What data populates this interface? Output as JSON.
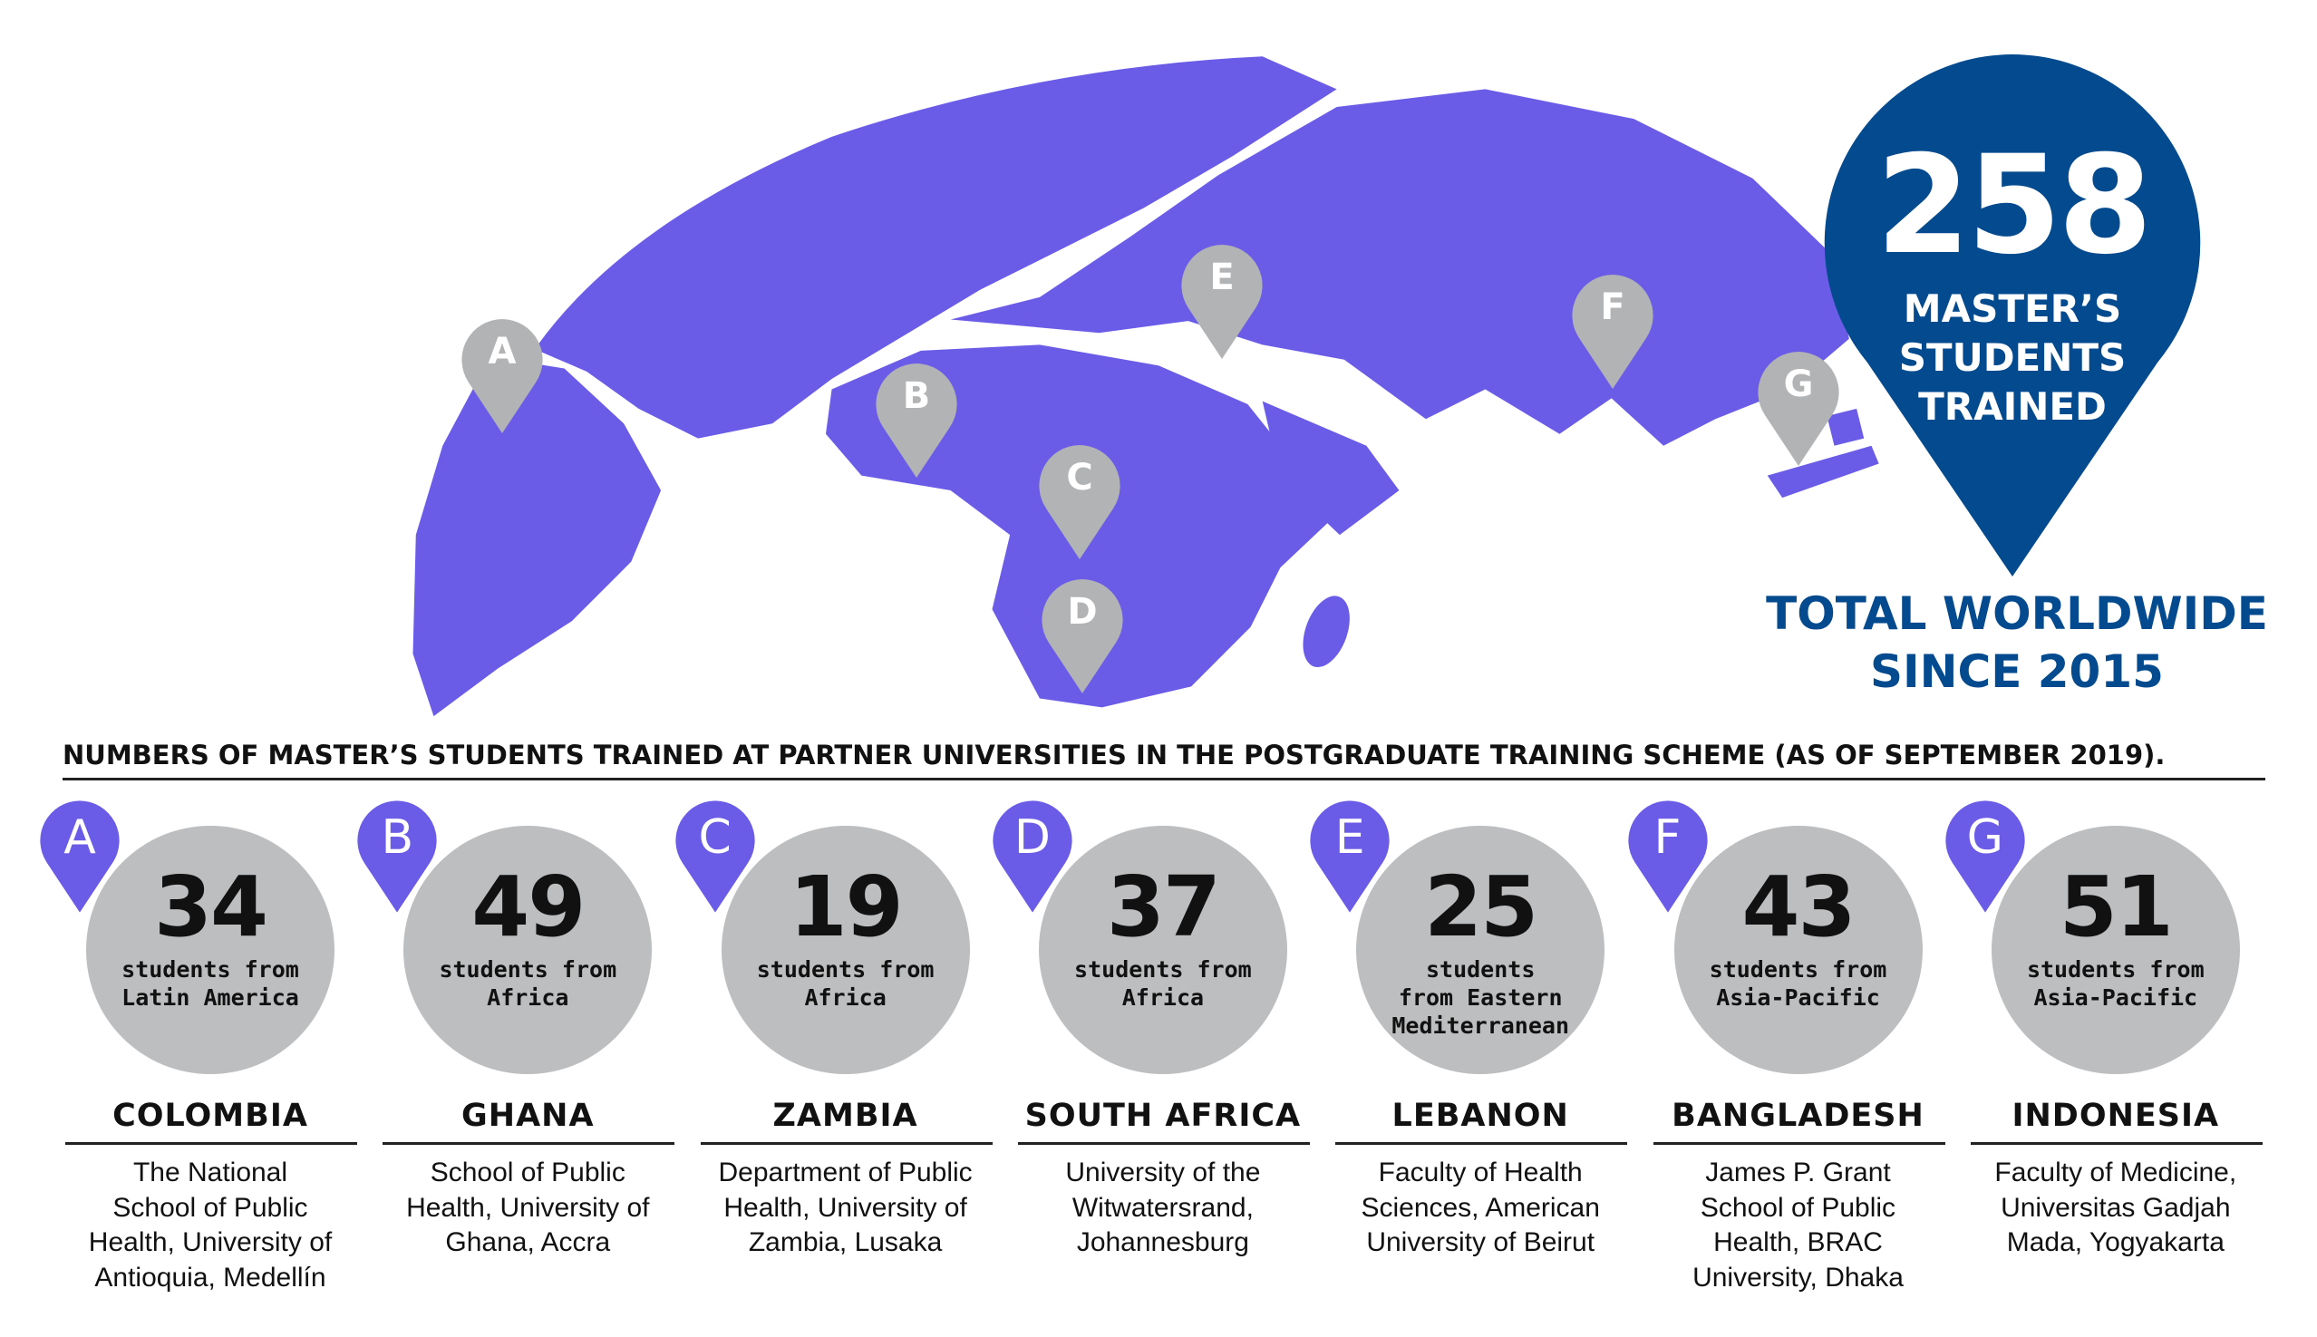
{
  "colors": {
    "map": "#6b5ce7",
    "pin_map": "#b1b3b5",
    "pin_total": "#034a8e",
    "circle": "#bdbec0",
    "pin_column": "#6b5ce7"
  },
  "map_pins": [
    {
      "letter": "A",
      "icon": "map-pin-icon"
    },
    {
      "letter": "B",
      "icon": "map-pin-icon"
    },
    {
      "letter": "C",
      "icon": "map-pin-icon"
    },
    {
      "letter": "D",
      "icon": "map-pin-icon"
    },
    {
      "letter": "E",
      "icon": "map-pin-icon"
    },
    {
      "letter": "F",
      "icon": "map-pin-icon"
    },
    {
      "letter": "G",
      "icon": "map-pin-icon"
    }
  ],
  "total": {
    "number": "258",
    "line1": "MASTER’S",
    "line2": "STUDENTS",
    "line3": "TRAINED",
    "caption1": "TOTAL WORLDWIDE",
    "caption2": "SINCE 2015"
  },
  "heading": "NUMBERS OF MASTER’S STUDENTS TRAINED AT PARTNER UNIVERSITIES IN THE POSTGRADUATE TRAINING SCHEME (AS OF SEPTEMBER 2019).",
  "partners": [
    {
      "letter": "A",
      "count": "34",
      "desc": [
        "students from",
        "Latin America"
      ],
      "country": "COLOMBIA",
      "institution": [
        "The National",
        "School of Public",
        "Health, University of",
        "Antioquia, Medellín"
      ]
    },
    {
      "letter": "B",
      "count": "49",
      "desc": [
        "students from",
        "Africa"
      ],
      "country": "GHANA",
      "institution": [
        "School of Public",
        "Health, University of",
        "Ghana, Accra"
      ]
    },
    {
      "letter": "C",
      "count": "19",
      "desc": [
        "students from",
        "Africa"
      ],
      "country": "ZAMBIA",
      "institution": [
        "Department of Public",
        "Health, University of",
        "Zambia, Lusaka"
      ]
    },
    {
      "letter": "D",
      "count": "37",
      "desc": [
        "students from",
        "Africa"
      ],
      "country": "SOUTH AFRICA",
      "institution": [
        "University of the",
        "Witwatersrand,",
        "Johannesburg"
      ]
    },
    {
      "letter": "E",
      "count": "25",
      "desc": [
        "students",
        "from Eastern",
        "Mediterranean"
      ],
      "country": "LEBANON",
      "institution": [
        "Faculty of Health",
        "Sciences, American",
        "University of Beirut"
      ]
    },
    {
      "letter": "F",
      "count": "43",
      "desc": [
        "students from",
        "Asia-Pacific"
      ],
      "country": "BANGLADESH",
      "institution": [
        "James P. Grant",
        "School of Public",
        "Health, BRAC",
        "University, Dhaka"
      ]
    },
    {
      "letter": "G",
      "count": "51",
      "desc": [
        "students from",
        "Asia-Pacific"
      ],
      "country": "INDONESIA",
      "institution": [
        "Faculty of Medicine,",
        "Universitas Gadjah",
        "Mada, Yogyakarta"
      ]
    }
  ]
}
